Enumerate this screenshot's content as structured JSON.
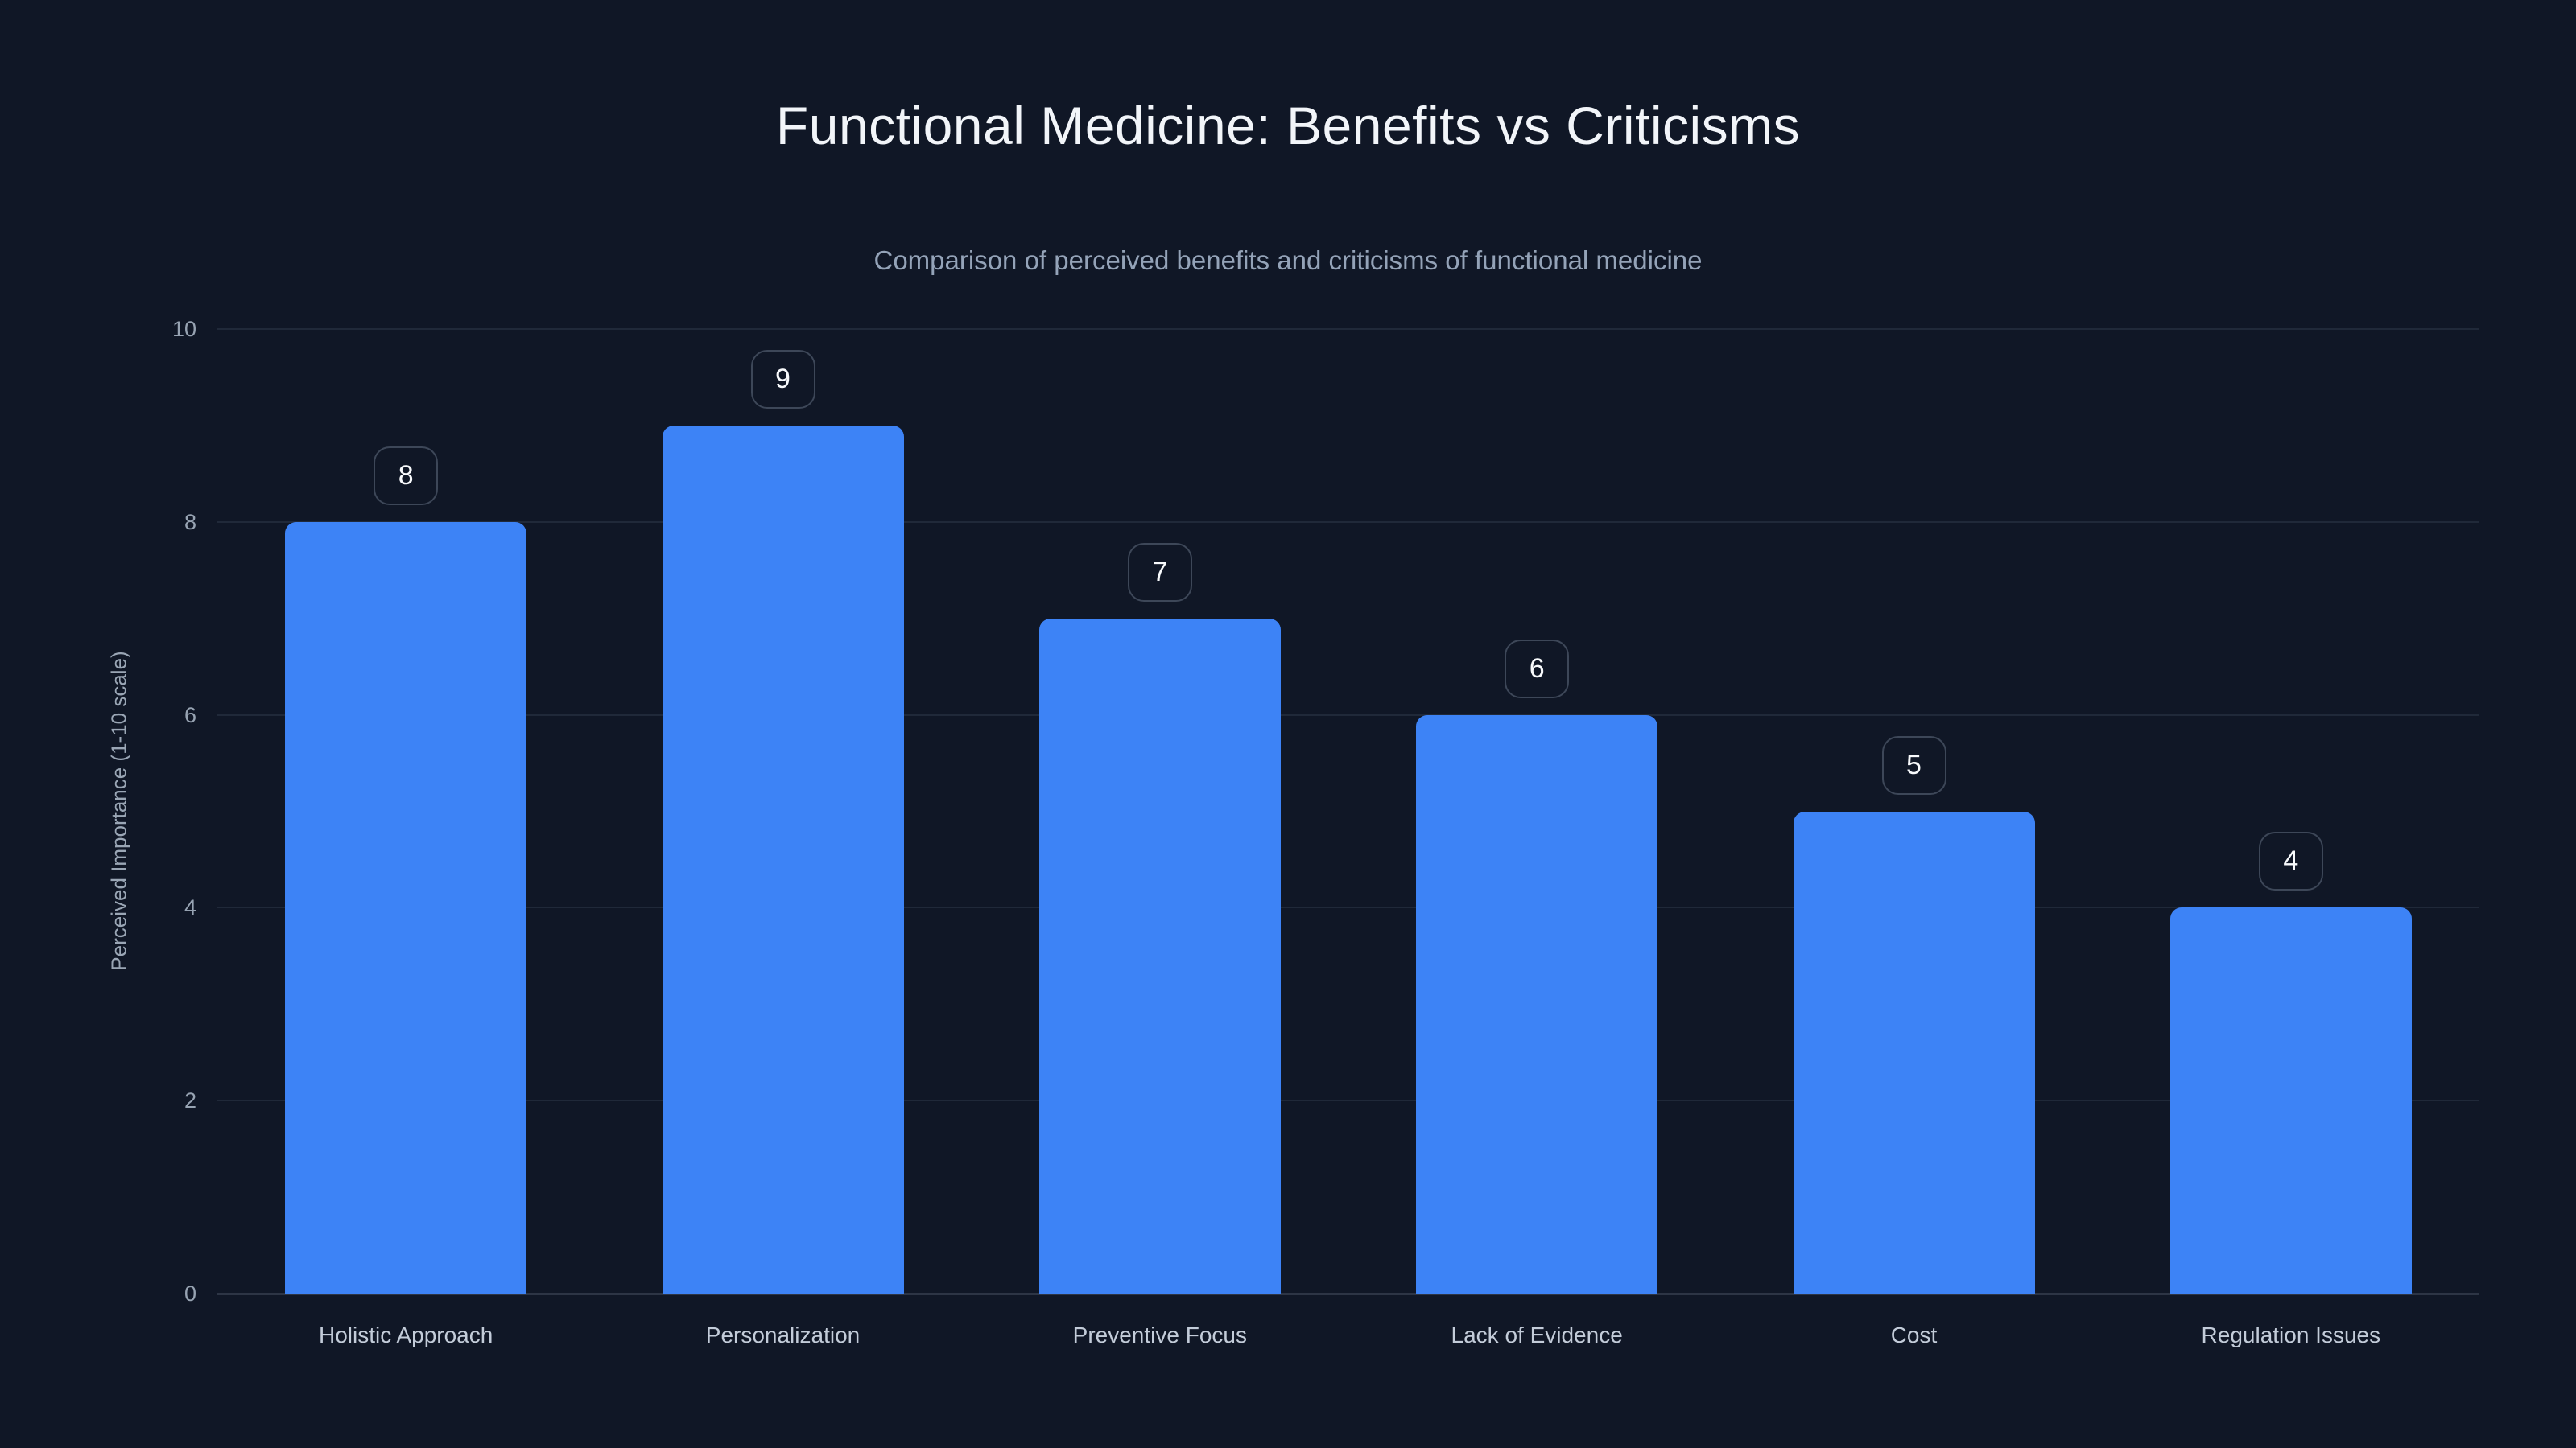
{
  "chart_data": {
    "type": "bar",
    "title": "Functional Medicine: Benefits vs Criticisms",
    "subtitle": "Comparison of perceived benefits and criticisms of functional medicine",
    "ylabel": "Perceived Importance (1-10 scale)",
    "xlabel": "",
    "categories": [
      "Holistic Approach",
      "Personalization",
      "Preventive Focus",
      "Lack of Evidence",
      "Cost",
      "Regulation Issues"
    ],
    "values": [
      8,
      9,
      7,
      6,
      5,
      4
    ],
    "data_labels": [
      "8",
      "9",
      "7",
      "6",
      "5",
      "4"
    ],
    "yticks": [
      0,
      2,
      4,
      6,
      8,
      10
    ],
    "ylim": [
      0,
      10
    ],
    "grid": "horizontal-only",
    "legend": "none",
    "style": {
      "background": "#101726",
      "bar_color": "#3d83f6",
      "grid_color": "rgba(148,163,184,0.13)",
      "baseline_color": "rgba(148,163,184,0.22)",
      "title_color": "#f2f5f9",
      "subtitle_color": "#94a3b8",
      "tick_color": "#97a3b2",
      "category_color": "#c3ccd9",
      "ylabel_color": "#9aa6b5",
      "badge_border_color": "#3d4758",
      "badge_text_color": "#f8fafc"
    }
  }
}
